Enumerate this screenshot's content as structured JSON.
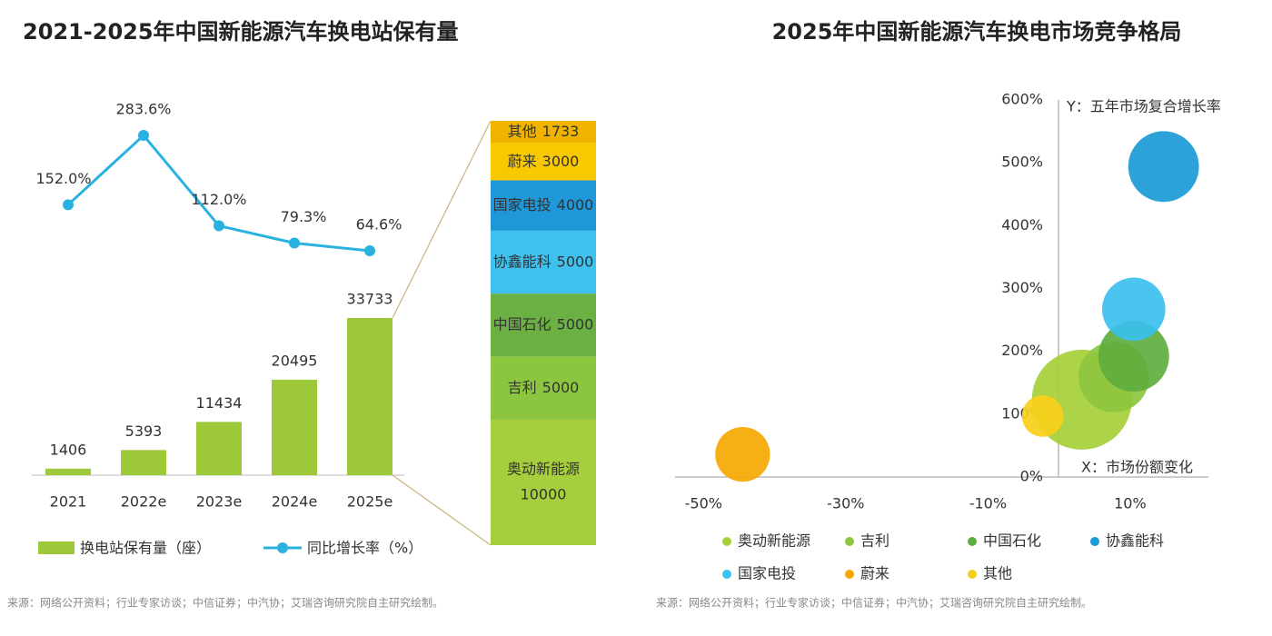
{
  "chart_data": [
    {
      "type": "bar",
      "title": "2021-2025年中国新能源汽车换电站保有量",
      "categories": [
        "2021",
        "2022e",
        "2023e",
        "2024e",
        "2025e"
      ],
      "series": [
        {
          "name": "换电站保有量（座）",
          "color": "#9cc83a",
          "values": [
            1406,
            5393,
            11434,
            20495,
            33733
          ]
        },
        {
          "name": "同比增长率（%）",
          "type": "line",
          "color": "#29b2df",
          "values": [
            152.0,
            283.6,
            112.0,
            79.3,
            64.6
          ],
          "value_labels": [
            "152.0%",
            "283.6%",
            "112.0%",
            "79.3%",
            "64.6%"
          ]
        }
      ],
      "breakdown": {
        "categories": [
          "奥动新能源",
          "吉利",
          "中国石化",
          "协鑫能科",
          "国家电投",
          "蔚来",
          "其他"
        ],
        "values": [
          10000,
          5000,
          5000,
          5000,
          4000,
          3000,
          1733
        ],
        "colors": [
          "#a5cf3c",
          "#8cc63f",
          "#6ab042",
          "#3ec1ee",
          "#1e98d8",
          "#f8c800",
          "#f0b400"
        ]
      },
      "source": "来源：网络公开资料；行业专家访谈；中信证券；中汽协；艾瑞咨询研究院自主研究绘制。"
    },
    {
      "type": "scatter",
      "title": "2025年中国新能源汽车换电市场竞争格局",
      "x_label": "X：市场份额变化",
      "y_label": "Y：五年市场复合增长率",
      "xlim": [
        -54,
        21
      ],
      "ylim": [
        0,
        600
      ],
      "xticks": [
        {
          "value": -50,
          "label": "-50%"
        },
        {
          "value": -30,
          "label": "-30%"
        },
        {
          "value": -10,
          "label": "-10%"
        },
        {
          "value": 10,
          "label": "10%"
        }
      ],
      "yticks": [
        {
          "value": 0,
          "label": "0%"
        },
        {
          "value": 100,
          "label": "100%"
        },
        {
          "value": 200,
          "label": "200%"
        },
        {
          "value": 300,
          "label": "300%"
        },
        {
          "value": 400,
          "label": "400%"
        },
        {
          "value": 500,
          "label": "500%"
        },
        {
          "value": 600,
          "label": "600%"
        }
      ],
      "series": [
        {
          "name": "奥动新能源",
          "color": "#a6cf3a",
          "x": [
            3.2
          ],
          "values": [
            123
          ],
          "sizes": [
            10000
          ]
        },
        {
          "name": "吉利",
          "color": "#8dc63f",
          "x": [
            7.7
          ],
          "values": [
            159
          ],
          "sizes": [
            5000
          ]
        },
        {
          "name": "中国石化",
          "color": "#5fae3e",
          "x": [
            10.5
          ],
          "values": [
            192
          ],
          "sizes": [
            5000
          ]
        },
        {
          "name": "协鑫能科",
          "color": "#1b9ad6",
          "x": [
            14.7
          ],
          "values": [
            494
          ],
          "sizes": [
            5000
          ]
        },
        {
          "name": "国家电投",
          "color": "#39c0ef",
          "x": [
            10.5
          ],
          "values": [
            267
          ],
          "sizes": [
            4000
          ]
        },
        {
          "name": "蔚来",
          "color": "#f5a800",
          "x": [
            -44.5
          ],
          "values": [
            36
          ],
          "sizes": [
            3000
          ]
        },
        {
          "name": "其他",
          "color": "#f7cf1a",
          "x": [
            -2.3
          ],
          "values": [
            97
          ],
          "sizes": [
            1733
          ]
        }
      ],
      "source": "来源：网络公开资料；行业专家访谈；中信证券；中汽协；艾瑞咨询研究院自主研究绘制。"
    }
  ]
}
